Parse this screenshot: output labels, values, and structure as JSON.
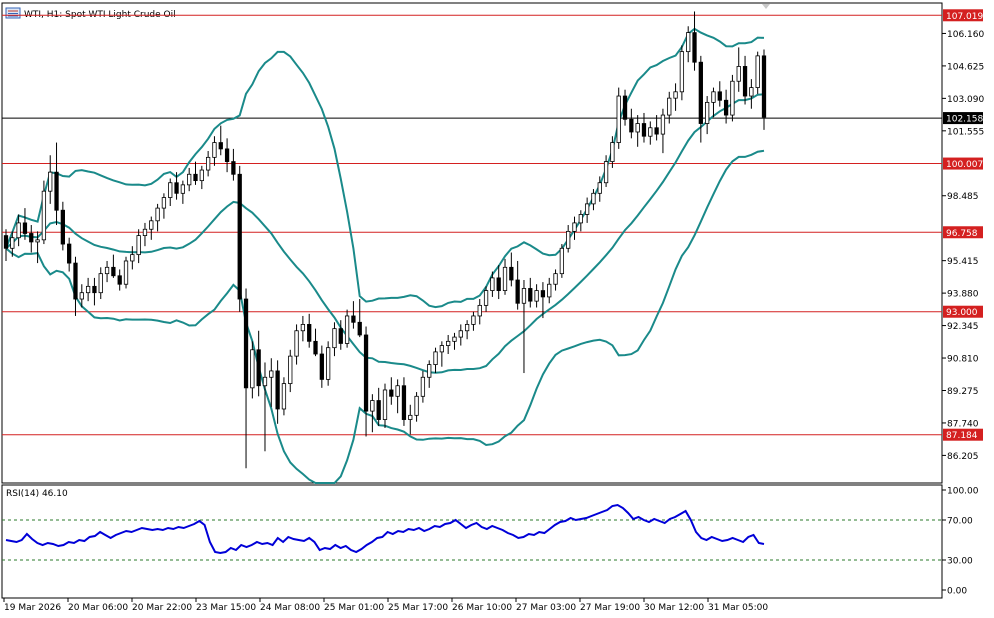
{
  "window": {
    "title": "WTI, H1:  Spot WTI Light Crude Oil",
    "icon": "window-icon"
  },
  "price_axis": {
    "ticks": [
      "106.160",
      "104.625",
      "103.090",
      "101.555",
      "98.485",
      "95.415",
      "93.880",
      "92.345",
      "90.810",
      "89.275",
      "87.740",
      "86.205"
    ],
    "tick_values": [
      106.16,
      104.625,
      103.09,
      101.555,
      98.485,
      95.415,
      93.88,
      92.345,
      90.81,
      89.275,
      87.74,
      86.205
    ],
    "range": [
      84.9,
      107.6
    ]
  },
  "levels": [
    {
      "value": 107.019,
      "label": "107.019"
    },
    {
      "value": 100.007,
      "label": "100.007"
    },
    {
      "value": 96.758,
      "label": "96.758"
    },
    {
      "value": 93.0,
      "label": "93.000"
    },
    {
      "value": 87.184,
      "label": "87.184"
    }
  ],
  "current_price": {
    "value": 102.158,
    "label": "102.158"
  },
  "time_axis": {
    "labels": [
      "19 Mar 2026",
      "20 Mar 06:00",
      "20 Mar 22:00",
      "23 Mar 15:00",
      "24 Mar 08:00",
      "25 Mar 01:00",
      "25 Mar 17:00",
      "26 Mar 10:00",
      "27 Mar 03:00",
      "27 Mar 19:00",
      "30 Mar 12:00",
      "31 Mar 05:00"
    ]
  },
  "rsi": {
    "title": "RSI(14) 46.10",
    "ticks": [
      "100.00",
      "70.00",
      "30.00",
      "0.00"
    ],
    "levels": [
      70,
      30
    ],
    "values": [
      50,
      49,
      48,
      50,
      56,
      51,
      47,
      45,
      47,
      46,
      44,
      45,
      48,
      47,
      50,
      49,
      53,
      54,
      58,
      55,
      52,
      55,
      57,
      59,
      58,
      60,
      62,
      61,
      60,
      61,
      60,
      62,
      61,
      63,
      62,
      64,
      66,
      69,
      65,
      48,
      38,
      37,
      38,
      42,
      40,
      45,
      43,
      45,
      48,
      46,
      47,
      45,
      52,
      48,
      53,
      51,
      50,
      49,
      52,
      48,
      40,
      42,
      41,
      45,
      42,
      44,
      40,
      38,
      41,
      45,
      48,
      52,
      53,
      58,
      56,
      59,
      58,
      61,
      60,
      62,
      59,
      61,
      64,
      63,
      66,
      67,
      70,
      66,
      62,
      65,
      67,
      63,
      61,
      64,
      62,
      60,
      57,
      55,
      52,
      53,
      56,
      55,
      58,
      57,
      61,
      65,
      68,
      69,
      72,
      70,
      71,
      72,
      74,
      76,
      78,
      80,
      84,
      85,
      82,
      77,
      71,
      73,
      70,
      68,
      71,
      69,
      67,
      71,
      73,
      76,
      79,
      70,
      58,
      52,
      50,
      53,
      51,
      49,
      50,
      52,
      50,
      48,
      53,
      55,
      47,
      46
    ]
  },
  "chart_data": {
    "type": "candlestick",
    "title": "WTI, H1:  Spot WTI Light Crude Oil",
    "ylim": [
      84.9,
      107.6
    ],
    "candles": [
      [
        96.6,
        96.9,
        95.4,
        96.0
      ],
      [
        96.0,
        96.8,
        95.6,
        96.5
      ],
      [
        96.5,
        97.6,
        96.1,
        97.2
      ],
      [
        97.2,
        97.9,
        96.4,
        96.7
      ],
      [
        96.7,
        97.1,
        95.8,
        96.3
      ],
      [
        96.3,
        96.8,
        95.3,
        96.4
      ],
      [
        96.4,
        99.2,
        96.2,
        98.7
      ],
      [
        98.7,
        100.4,
        98.1,
        99.6
      ],
      [
        99.6,
        101.0,
        97.1,
        97.8
      ],
      [
        97.8,
        98.2,
        95.9,
        96.2
      ],
      [
        96.2,
        96.5,
        94.9,
        95.3
      ],
      [
        95.3,
        95.6,
        92.8,
        93.6
      ],
      [
        93.6,
        94.3,
        93.2,
        93.9
      ],
      [
        93.9,
        94.6,
        93.5,
        94.2
      ],
      [
        94.2,
        94.6,
        93.3,
        93.9
      ],
      [
        93.9,
        95.1,
        93.6,
        94.8
      ],
      [
        94.8,
        95.4,
        94.4,
        95.1
      ],
      [
        95.1,
        95.7,
        94.6,
        94.7
      ],
      [
        94.7,
        95.0,
        94.0,
        94.3
      ],
      [
        94.3,
        95.6,
        94.1,
        95.4
      ],
      [
        95.4,
        96.1,
        95.0,
        95.7
      ],
      [
        95.7,
        96.9,
        95.3,
        96.6
      ],
      [
        96.6,
        97.2,
        96.1,
        96.9
      ],
      [
        96.9,
        97.5,
        96.4,
        97.3
      ],
      [
        97.3,
        98.1,
        96.8,
        97.9
      ],
      [
        97.9,
        98.6,
        97.4,
        98.4
      ],
      [
        98.4,
        99.3,
        98.0,
        99.1
      ],
      [
        99.1,
        99.6,
        98.3,
        98.6
      ],
      [
        98.6,
        99.2,
        98.1,
        99.0
      ],
      [
        99.0,
        99.8,
        98.7,
        99.5
      ],
      [
        99.5,
        100.1,
        99.0,
        99.2
      ],
      [
        99.2,
        99.9,
        98.8,
        99.7
      ],
      [
        99.7,
        100.6,
        99.4,
        100.3
      ],
      [
        100.3,
        101.3,
        99.9,
        101.0
      ],
      [
        101.0,
        101.8,
        100.4,
        100.7
      ],
      [
        100.7,
        101.2,
        99.6,
        100.1
      ],
      [
        100.1,
        100.7,
        99.2,
        99.5
      ],
      [
        99.5,
        99.9,
        93.0,
        93.6
      ],
      [
        93.6,
        94.1,
        85.6,
        89.4
      ],
      [
        89.4,
        91.6,
        88.9,
        91.2
      ],
      [
        91.2,
        92.1,
        89.0,
        89.5
      ],
      [
        89.5,
        90.6,
        86.4,
        89.9
      ],
      [
        89.9,
        90.8,
        88.5,
        90.2
      ],
      [
        90.2,
        90.7,
        87.7,
        88.4
      ],
      [
        88.4,
        89.9,
        88.1,
        89.6
      ],
      [
        89.6,
        91.2,
        89.2,
        90.9
      ],
      [
        90.9,
        92.4,
        90.5,
        92.1
      ],
      [
        92.1,
        92.8,
        91.6,
        92.4
      ],
      [
        92.4,
        92.9,
        91.3,
        91.6
      ],
      [
        91.6,
        92.2,
        90.9,
        91.0
      ],
      [
        91.0,
        91.4,
        89.4,
        89.8
      ],
      [
        89.8,
        91.6,
        89.5,
        91.3
      ],
      [
        91.3,
        92.5,
        90.9,
        92.2
      ],
      [
        92.2,
        92.6,
        91.2,
        91.5
      ],
      [
        91.5,
        93.1,
        91.3,
        92.8
      ],
      [
        92.8,
        93.5,
        92.2,
        92.5
      ],
      [
        92.5,
        93.6,
        91.8,
        91.9
      ],
      [
        91.9,
        92.3,
        87.1,
        88.3
      ],
      [
        88.3,
        89.1,
        87.3,
        88.8
      ],
      [
        88.8,
        89.4,
        87.6,
        87.9
      ],
      [
        87.9,
        89.6,
        87.5,
        89.3
      ],
      [
        89.3,
        89.9,
        88.6,
        89.0
      ],
      [
        89.0,
        89.8,
        88.2,
        89.5
      ],
      [
        89.5,
        89.9,
        87.6,
        87.9
      ],
      [
        87.9,
        88.6,
        87.2,
        88.1
      ],
      [
        88.1,
        89.2,
        87.8,
        89.0
      ],
      [
        89.0,
        90.2,
        88.7,
        89.9
      ],
      [
        89.9,
        90.7,
        89.4,
        90.5
      ],
      [
        90.5,
        91.3,
        90.1,
        91.1
      ],
      [
        91.1,
        91.6,
        90.4,
        91.4
      ],
      [
        91.4,
        91.9,
        91.0,
        91.6
      ],
      [
        91.6,
        92.0,
        91.2,
        91.8
      ],
      [
        91.8,
        92.4,
        91.4,
        92.1
      ],
      [
        92.1,
        92.6,
        91.7,
        92.4
      ],
      [
        92.4,
        93.0,
        92.1,
        92.8
      ],
      [
        92.8,
        93.6,
        92.4,
        93.3
      ],
      [
        93.3,
        94.2,
        93.0,
        94.0
      ],
      [
        94.0,
        94.9,
        93.7,
        94.6
      ],
      [
        94.6,
        95.2,
        93.6,
        94.0
      ],
      [
        94.0,
        95.5,
        93.8,
        95.1
      ],
      [
        95.1,
        95.8,
        94.2,
        94.5
      ],
      [
        94.5,
        95.4,
        93.1,
        93.4
      ],
      [
        93.4,
        94.5,
        90.1,
        94.1
      ],
      [
        94.1,
        94.6,
        93.2,
        93.5
      ],
      [
        93.5,
        94.3,
        93.2,
        94.0
      ],
      [
        94.0,
        94.4,
        92.7,
        93.7
      ],
      [
        93.7,
        94.6,
        93.4,
        94.3
      ],
      [
        94.3,
        95.0,
        94.0,
        94.8
      ],
      [
        94.8,
        96.2,
        94.6,
        96.0
      ],
      [
        96.0,
        97.1,
        95.8,
        96.8
      ],
      [
        96.8,
        97.5,
        96.4,
        97.2
      ],
      [
        97.2,
        97.8,
        96.8,
        97.6
      ],
      [
        97.6,
        98.4,
        97.2,
        98.1
      ],
      [
        98.1,
        98.8,
        97.8,
        98.6
      ],
      [
        98.6,
        99.4,
        98.2,
        99.1
      ],
      [
        99.1,
        100.4,
        98.9,
        100.1
      ],
      [
        100.1,
        101.3,
        99.8,
        101.0
      ],
      [
        101.0,
        103.6,
        100.7,
        103.2
      ],
      [
        103.2,
        103.5,
        101.8,
        102.1
      ],
      [
        102.1,
        102.6,
        101.2,
        101.5
      ],
      [
        101.5,
        102.3,
        100.8,
        101.9
      ],
      [
        101.9,
        102.4,
        101.0,
        101.3
      ],
      [
        101.3,
        102.0,
        100.9,
        101.7
      ],
      [
        101.7,
        102.3,
        101.1,
        101.4
      ],
      [
        101.4,
        102.6,
        100.5,
        102.3
      ],
      [
        102.3,
        103.4,
        101.9,
        103.1
      ],
      [
        103.1,
        103.8,
        102.5,
        103.4
      ],
      [
        103.4,
        105.6,
        103.0,
        105.3
      ],
      [
        105.3,
        106.5,
        104.8,
        106.2
      ],
      [
        106.2,
        107.2,
        104.4,
        104.8
      ],
      [
        104.8,
        105.1,
        101.0,
        101.9
      ],
      [
        101.9,
        103.2,
        101.4,
        102.9
      ],
      [
        102.9,
        103.6,
        102.2,
        103.4
      ],
      [
        103.4,
        103.9,
        102.7,
        103.0
      ],
      [
        103.0,
        103.5,
        101.9,
        102.3
      ],
      [
        102.3,
        104.2,
        102.0,
        103.9
      ],
      [
        103.9,
        105.5,
        103.4,
        104.6
      ],
      [
        104.6,
        105.1,
        102.8,
        103.2
      ],
      [
        103.2,
        104.0,
        102.6,
        103.6
      ],
      [
        103.6,
        105.3,
        103.3,
        105.1
      ],
      [
        105.1,
        105.4,
        101.6,
        102.2
      ]
    ]
  }
}
